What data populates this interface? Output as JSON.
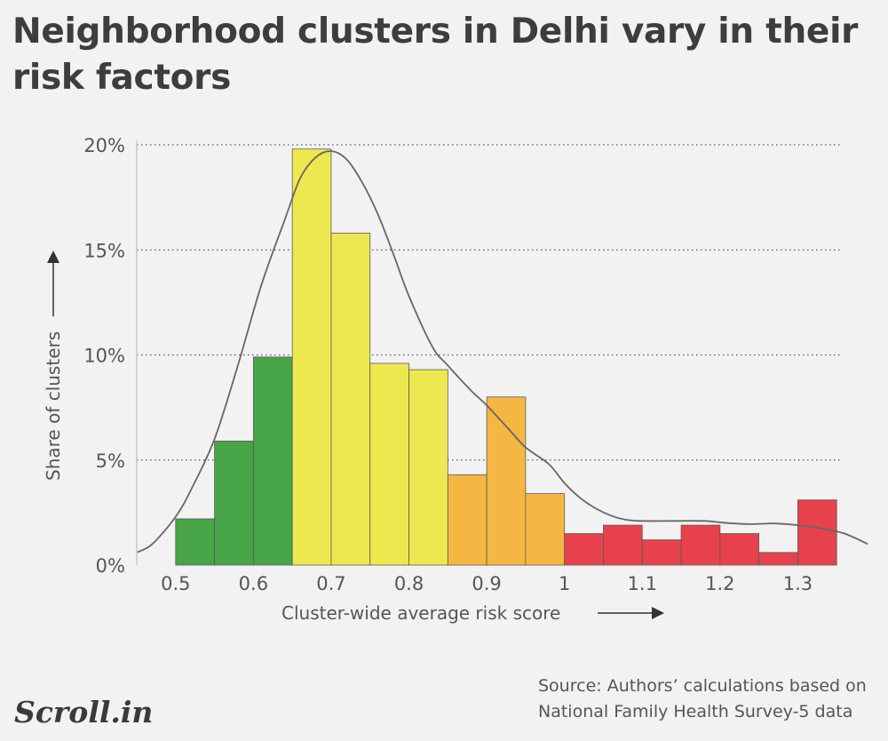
{
  "title": "Neighborhood clusters in Delhi vary in their risk factors",
  "source_line1": "Source:  Authors’ calculations based on",
  "source_line2": "National Family Health Survey-5 data",
  "logo_text": "Scroll.in",
  "colors": {
    "green": "#47a447",
    "yellow": "#ede84f",
    "orange": "#f4b743",
    "red": "#e7424b",
    "curve": "#666666",
    "text": "#555555"
  },
  "chart_data": {
    "type": "bar",
    "title": "Neighborhood clusters in Delhi vary in their risk factors",
    "xlabel": "Cluster-wide average risk score",
    "ylabel": "Share of clusters",
    "xlim": [
      0.45,
      1.4
    ],
    "ylim": [
      0,
      20
    ],
    "x_ticks": [
      0.5,
      0.6,
      0.7,
      0.8,
      0.9,
      1.0,
      1.1,
      1.2,
      1.3
    ],
    "x_tick_labels": [
      "0.5",
      "0.6",
      "0.7",
      "0.8",
      "0.9",
      "1",
      "1.1",
      "1.2",
      "1.3"
    ],
    "y_ticks": [
      0,
      5,
      10,
      15,
      20
    ],
    "y_tick_labels": [
      "0%",
      "5%",
      "10%",
      "15%",
      "20%"
    ],
    "grid": "horizontal dotted",
    "bin_width": 0.05,
    "bins": [
      {
        "start": 0.5,
        "value": 2.2,
        "color": "green"
      },
      {
        "start": 0.55,
        "value": 5.9,
        "color": "green"
      },
      {
        "start": 0.6,
        "value": 9.9,
        "color": "green"
      },
      {
        "start": 0.65,
        "value": 19.8,
        "color": "yellow"
      },
      {
        "start": 0.7,
        "value": 15.8,
        "color": "yellow"
      },
      {
        "start": 0.75,
        "value": 9.6,
        "color": "yellow"
      },
      {
        "start": 0.8,
        "value": 9.3,
        "color": "yellow"
      },
      {
        "start": 0.85,
        "value": 4.3,
        "color": "orange"
      },
      {
        "start": 0.9,
        "value": 8.0,
        "color": "orange"
      },
      {
        "start": 0.95,
        "value": 3.4,
        "color": "orange"
      },
      {
        "start": 1.0,
        "value": 1.5,
        "color": "red"
      },
      {
        "start": 1.05,
        "value": 1.9,
        "color": "red"
      },
      {
        "start": 1.1,
        "value": 1.2,
        "color": "red"
      },
      {
        "start": 1.15,
        "value": 1.9,
        "color": "red"
      },
      {
        "start": 1.2,
        "value": 1.5,
        "color": "red"
      },
      {
        "start": 1.25,
        "value": 0.6,
        "color": "red"
      },
      {
        "start": 1.3,
        "value": 3.1,
        "color": "red"
      }
    ],
    "density_curve": [
      [
        0.45,
        0.6
      ],
      [
        0.47,
        1.0
      ],
      [
        0.5,
        2.3
      ],
      [
        0.52,
        3.6
      ],
      [
        0.55,
        6.0
      ],
      [
        0.58,
        9.5
      ],
      [
        0.61,
        13.3
      ],
      [
        0.64,
        16.4
      ],
      [
        0.66,
        18.4
      ],
      [
        0.68,
        19.4
      ],
      [
        0.7,
        19.7
      ],
      [
        0.72,
        19.3
      ],
      [
        0.74,
        18.2
      ],
      [
        0.76,
        16.7
      ],
      [
        0.78,
        14.8
      ],
      [
        0.8,
        12.8
      ],
      [
        0.83,
        10.4
      ],
      [
        0.85,
        9.5
      ],
      [
        0.88,
        8.3
      ],
      [
        0.9,
        7.6
      ],
      [
        0.93,
        6.4
      ],
      [
        0.95,
        5.6
      ],
      [
        0.98,
        4.8
      ],
      [
        1.0,
        3.9
      ],
      [
        1.02,
        3.2
      ],
      [
        1.04,
        2.7
      ],
      [
        1.06,
        2.35
      ],
      [
        1.08,
        2.15
      ],
      [
        1.1,
        2.1
      ],
      [
        1.14,
        2.1
      ],
      [
        1.18,
        2.1
      ],
      [
        1.21,
        2.0
      ],
      [
        1.24,
        1.95
      ],
      [
        1.27,
        1.98
      ],
      [
        1.3,
        1.9
      ],
      [
        1.33,
        1.75
      ],
      [
        1.36,
        1.5
      ],
      [
        1.39,
        1.0
      ]
    ]
  }
}
